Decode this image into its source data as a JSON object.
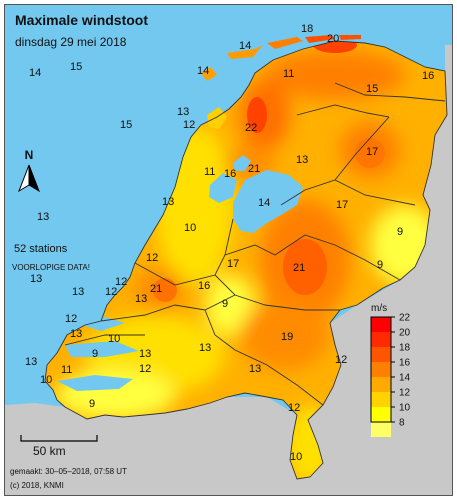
{
  "header": {
    "title": "Maximale windstoot",
    "date": "dinsdag 29 mei 2018"
  },
  "info": {
    "stations": "52 stations",
    "status": "VOORLOPIGE DATA!"
  },
  "compass": {
    "label": "N"
  },
  "scale_bar": {
    "label": "50 km"
  },
  "footer": {
    "made": "gemaakt: 30–05–2018, 07:58 UT",
    "copyright": "(c) 2018, KNMI"
  },
  "legend": {
    "unit": "m/s",
    "ticks": [
      "22",
      "20",
      "18",
      "16",
      "14",
      "12",
      "10",
      "8"
    ],
    "colors": [
      "#ff0000",
      "#ff2a00",
      "#ff5500",
      "#ff8000",
      "#ffaa00",
      "#ffd200",
      "#ffff00",
      "#ffff66"
    ]
  },
  "colors": {
    "sea": "#72c8ef",
    "foreign_land": "#c8c8c8",
    "land_base": "#ffb000",
    "border": "#333333"
  },
  "stations": [
    {
      "value": "18"
    },
    {
      "value": "20"
    },
    {
      "value": "14"
    },
    {
      "value": "14"
    },
    {
      "value": "15"
    },
    {
      "value": "14"
    },
    {
      "value": "11"
    },
    {
      "value": "15"
    },
    {
      "value": "16"
    },
    {
      "value": "13"
    },
    {
      "value": "12"
    },
    {
      "value": "15"
    },
    {
      "value": "22"
    },
    {
      "value": "13"
    },
    {
      "value": "21"
    },
    {
      "value": "11"
    },
    {
      "value": "16"
    },
    {
      "value": "17"
    },
    {
      "value": "13"
    },
    {
      "value": "17"
    },
    {
      "value": "14"
    },
    {
      "value": "13"
    },
    {
      "value": "10"
    },
    {
      "value": "9"
    },
    {
      "value": "12"
    },
    {
      "value": "21"
    },
    {
      "value": "17"
    },
    {
      "value": "9"
    },
    {
      "value": "13"
    },
    {
      "value": "21"
    },
    {
      "value": "16"
    },
    {
      "value": "12"
    },
    {
      "value": "13"
    },
    {
      "value": "9"
    },
    {
      "value": "13"
    },
    {
      "value": "12"
    },
    {
      "value": "12"
    },
    {
      "value": "19"
    },
    {
      "value": "10"
    },
    {
      "value": "9"
    },
    {
      "value": "13"
    },
    {
      "value": "12"
    },
    {
      "value": "13"
    },
    {
      "value": "11"
    },
    {
      "value": "12"
    },
    {
      "value": "13"
    },
    {
      "value": "10"
    },
    {
      "value": "9"
    },
    {
      "value": "12"
    },
    {
      "value": "10"
    },
    {
      "value": "13"
    },
    {
      "value": "13"
    }
  ]
}
